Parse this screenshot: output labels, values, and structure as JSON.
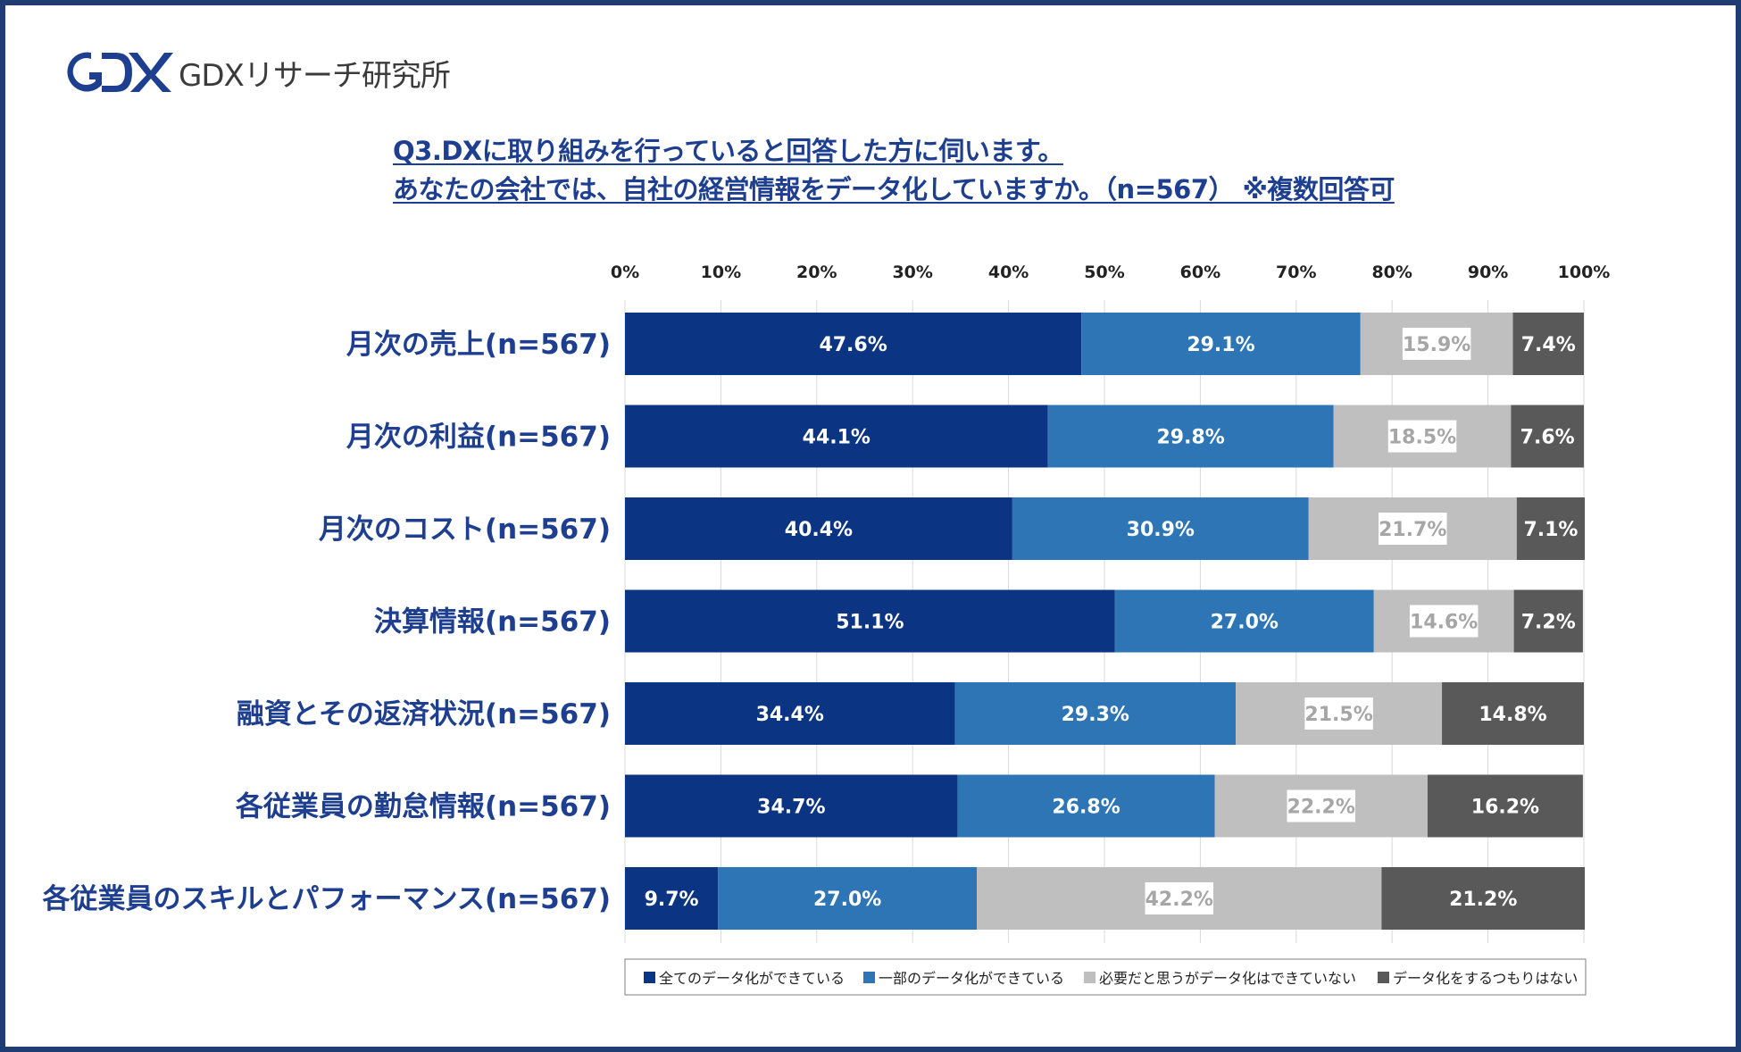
{
  "brand": {
    "name": "GDXリサーチ研究所",
    "logo_text": "GDX",
    "color": "#1e3f8f"
  },
  "question": {
    "line1": "Q3.DXに取り組みを行っていると回答した方に伺います。",
    "line2": "あなたの会社では、自社の経営情報をデータ化していますか。（n=567） ※複数回答可"
  },
  "chart_data": {
    "type": "bar",
    "orientation": "horizontal",
    "stacked": true,
    "percent_stacked": true,
    "xlim": [
      0,
      100
    ],
    "x_ticks": [
      "0%",
      "10%",
      "20%",
      "30%",
      "40%",
      "50%",
      "60%",
      "70%",
      "80%",
      "90%",
      "100%"
    ],
    "grid": true,
    "legend_position": "bottom",
    "categories": [
      "月次の売上(n=567)",
      "月次の利益(n=567)",
      "月次のコスト(n=567)",
      "決算情報(n=567)",
      "融資とその返済状況(n=567)",
      "各従業員の勤怠情報(n=567)",
      "各従業員のスキルとパフォーマンス(n=567)"
    ],
    "series": [
      {
        "name": "全てのデータ化ができている",
        "color": "#0b3482",
        "label_color": "#ffffff",
        "values": [
          47.6,
          44.1,
          40.4,
          51.1,
          34.4,
          34.7,
          9.7
        ]
      },
      {
        "name": "一部のデータ化ができている",
        "color": "#2e75b6",
        "label_color": "#ffffff",
        "values": [
          29.1,
          29.8,
          30.9,
          27.0,
          29.3,
          26.8,
          27.0
        ]
      },
      {
        "name": "必要だと思うがデータ化はできていない",
        "color": "#bfbfbf",
        "label_color": "#a6a6a6",
        "values": [
          15.9,
          18.5,
          21.7,
          14.6,
          21.5,
          22.2,
          42.2
        ]
      },
      {
        "name": "データ化をするつもりはない",
        "color": "#595959",
        "label_color": "#ffffff",
        "values": [
          7.4,
          7.6,
          7.1,
          7.2,
          14.8,
          16.2,
          21.2
        ]
      }
    ]
  }
}
